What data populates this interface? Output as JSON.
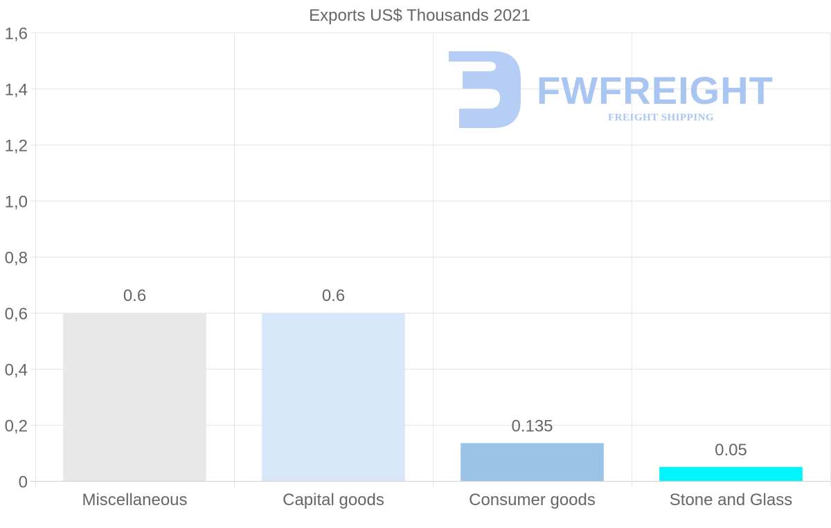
{
  "watermark": {
    "brand": "FWFREIGHT",
    "tagline": "FREIGHT SHIPPING",
    "color": "#a9c6f3"
  },
  "chart_data": {
    "type": "bar",
    "title": "Exports US$ Thousands 2021",
    "xlabel": "",
    "ylabel": "",
    "ylim": [
      0,
      1.6
    ],
    "y_ticks": [
      0,
      0.2,
      0.4,
      0.6,
      0.8,
      1.0,
      1.2,
      1.4,
      1.6
    ],
    "y_tick_labels": [
      "0",
      "0,2",
      "0,4",
      "0,6",
      "0,8",
      "1,0",
      "1,2",
      "1,4",
      "1,6"
    ],
    "grid": true,
    "categories": [
      "Miscellaneous",
      "Capital goods",
      "Consumer goods",
      "Stone and Glass"
    ],
    "values": [
      0.6,
      0.6,
      0.135,
      0.05
    ],
    "value_labels": [
      "0.6",
      "0.6",
      "0.135",
      "0.05"
    ],
    "colors": [
      "#e8e8e8",
      "#d7e7f9",
      "#9bc3e8",
      "#00f5ff"
    ]
  }
}
